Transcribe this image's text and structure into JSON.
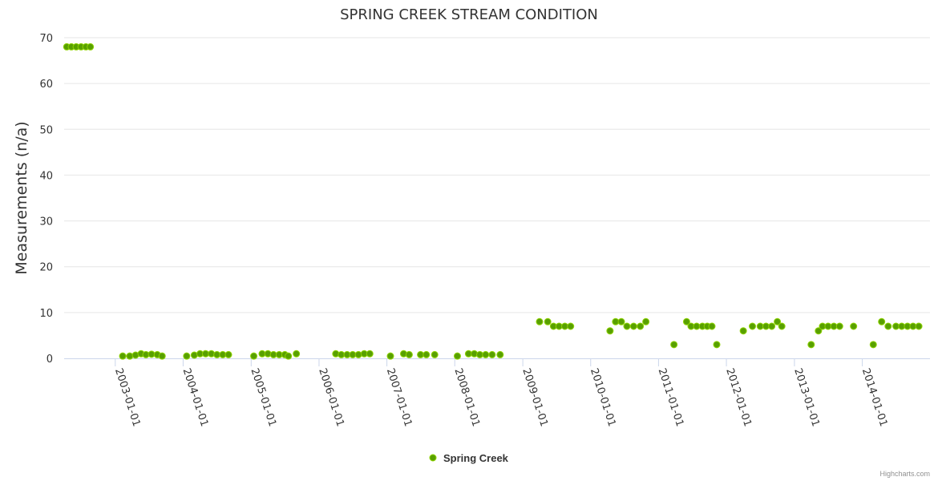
{
  "chart_data": {
    "type": "scatter",
    "title": "SPRING CREEK STREAM CONDITION",
    "xlabel": "",
    "ylabel": "Measurements (n/a)",
    "ylim": [
      0,
      70
    ],
    "yticks": [
      "0",
      "10",
      "20",
      "30",
      "40",
      "50",
      "60",
      "70"
    ],
    "xlim": [
      "2002-04-01",
      "2014-12-31"
    ],
    "xticks": [
      "2003-01-01",
      "2004-01-01",
      "2005-01-01",
      "2006-01-01",
      "2007-01-01",
      "2008-01-01",
      "2009-01-01",
      "2010-01-01",
      "2011-01-01",
      "2012-01-01",
      "2013-01-01",
      "2014-01-01"
    ],
    "color": "#58a000",
    "marker_stroke": "#8fd400",
    "legend": {
      "position": "bottom-center",
      "entries": [
        "Spring Creek"
      ]
    },
    "series": [
      {
        "name": "Spring Creek",
        "points": [
          [
            "2002-04-15",
            68
          ],
          [
            "2002-05-10",
            68
          ],
          [
            "2002-06-05",
            68
          ],
          [
            "2002-07-01",
            68
          ],
          [
            "2002-07-27",
            68
          ],
          [
            "2002-08-20",
            68
          ],
          [
            "2003-02-10",
            0.5
          ],
          [
            "2003-03-20",
            0.5
          ],
          [
            "2003-04-20",
            0.7
          ],
          [
            "2003-05-20",
            1
          ],
          [
            "2003-06-15",
            0.8
          ],
          [
            "2003-07-15",
            0.9
          ],
          [
            "2003-08-15",
            0.8
          ],
          [
            "2003-09-10",
            0.5
          ],
          [
            "2004-01-20",
            0.5
          ],
          [
            "2004-03-01",
            0.7
          ],
          [
            "2004-04-01",
            1
          ],
          [
            "2004-05-01",
            1
          ],
          [
            "2004-06-01",
            1
          ],
          [
            "2004-07-01",
            0.8
          ],
          [
            "2004-08-01",
            0.8
          ],
          [
            "2004-09-01",
            0.8
          ],
          [
            "2005-01-15",
            0.5
          ],
          [
            "2005-03-01",
            1
          ],
          [
            "2005-04-01",
            1
          ],
          [
            "2005-05-01",
            0.8
          ],
          [
            "2005-06-01",
            0.8
          ],
          [
            "2005-07-01",
            0.8
          ],
          [
            "2005-07-20",
            0.5
          ],
          [
            "2005-09-01",
            1
          ],
          [
            "2006-04-01",
            1
          ],
          [
            "2006-05-01",
            0.8
          ],
          [
            "2006-06-01",
            0.8
          ],
          [
            "2006-07-01",
            0.8
          ],
          [
            "2006-08-01",
            0.8
          ],
          [
            "2006-09-01",
            1
          ],
          [
            "2006-10-01",
            1
          ],
          [
            "2007-01-20",
            0.5
          ],
          [
            "2007-04-01",
            1
          ],
          [
            "2007-05-01",
            0.8
          ],
          [
            "2007-07-01",
            0.8
          ],
          [
            "2007-08-01",
            0.8
          ],
          [
            "2007-09-15",
            0.8
          ],
          [
            "2008-01-15",
            0.5
          ],
          [
            "2008-03-15",
            1
          ],
          [
            "2008-04-15",
            1
          ],
          [
            "2008-05-15",
            0.8
          ],
          [
            "2008-06-15",
            0.8
          ],
          [
            "2008-07-20",
            0.8
          ],
          [
            "2008-09-01",
            0.8
          ],
          [
            "2009-04-01",
            8
          ],
          [
            "2009-05-15",
            8
          ],
          [
            "2009-06-15",
            7
          ],
          [
            "2009-07-15",
            7
          ],
          [
            "2009-08-15",
            7
          ],
          [
            "2009-09-15",
            7
          ],
          [
            "2010-04-15",
            6
          ],
          [
            "2010-05-15",
            8
          ],
          [
            "2010-06-15",
            8
          ],
          [
            "2010-07-15",
            7
          ],
          [
            "2010-08-20",
            7
          ],
          [
            "2010-09-25",
            7
          ],
          [
            "2010-10-25",
            8
          ],
          [
            "2011-03-25",
            3
          ],
          [
            "2011-06-01",
            8
          ],
          [
            "2011-06-25",
            7
          ],
          [
            "2011-07-25",
            7
          ],
          [
            "2011-08-25",
            7
          ],
          [
            "2011-09-20",
            7
          ],
          [
            "2011-10-15",
            7
          ],
          [
            "2011-11-10",
            3
          ],
          [
            "2012-04-01",
            6
          ],
          [
            "2012-05-20",
            7
          ],
          [
            "2012-07-01",
            7
          ],
          [
            "2012-08-01",
            7
          ],
          [
            "2012-09-01",
            7
          ],
          [
            "2012-10-01",
            8
          ],
          [
            "2012-10-25",
            7
          ],
          [
            "2013-04-01",
            3
          ],
          [
            "2013-05-10",
            6
          ],
          [
            "2013-06-01",
            7
          ],
          [
            "2013-07-01",
            7
          ],
          [
            "2013-08-01",
            7
          ],
          [
            "2013-09-01",
            7
          ],
          [
            "2013-11-15",
            7
          ],
          [
            "2014-03-01",
            3
          ],
          [
            "2014-04-15",
            8
          ],
          [
            "2014-05-20",
            7
          ],
          [
            "2014-07-01",
            7
          ],
          [
            "2014-08-01",
            7
          ],
          [
            "2014-09-01",
            7
          ],
          [
            "2014-10-01",
            7
          ],
          [
            "2014-11-01",
            7
          ]
        ]
      }
    ],
    "credits": "Highcharts.com"
  }
}
